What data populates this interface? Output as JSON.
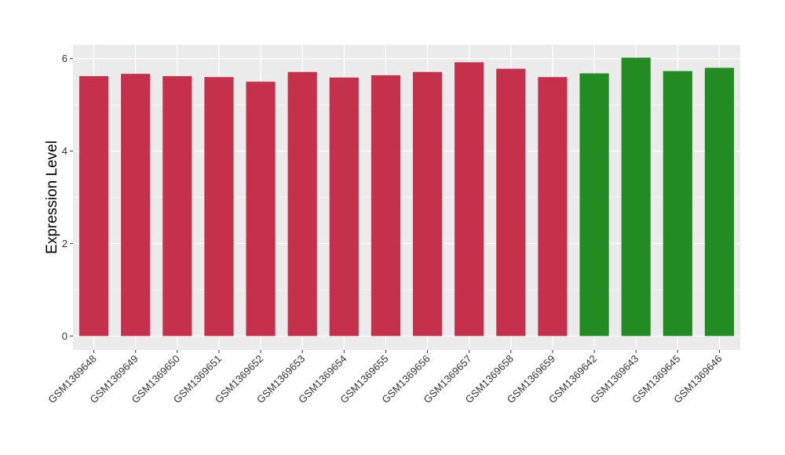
{
  "chart_data": {
    "type": "bar",
    "title": "",
    "xlabel": "",
    "ylabel": "Expression Level",
    "ylim": [
      -0.3,
      6.3
    ],
    "yticks": [
      0,
      2,
      4,
      6
    ],
    "grid": true,
    "legend": "none",
    "categories": [
      "GSM1369648",
      "GSM1369649",
      "GSM1369650",
      "GSM1369651",
      "GSM1369652",
      "GSM1369653",
      "GSM1369654",
      "GSM1369655",
      "GSM1369656",
      "GSM1369657",
      "GSM1369658",
      "GSM1369659",
      "GSM1369642",
      "GSM1369643",
      "GSM1369645",
      "GSM1369646"
    ],
    "values": [
      5.62,
      5.67,
      5.62,
      5.6,
      5.5,
      5.71,
      5.59,
      5.64,
      5.71,
      5.92,
      5.78,
      5.6,
      5.68,
      6.02,
      5.73,
      5.8
    ],
    "bar_colors": [
      "#c5304a",
      "#c5304a",
      "#c5304a",
      "#c5304a",
      "#c5304a",
      "#c5304a",
      "#c5304a",
      "#c5304a",
      "#c5304a",
      "#c5304a",
      "#c5304a",
      "#c5304a",
      "#228b22",
      "#228b22",
      "#228b22",
      "#228b22"
    ],
    "panel_color": "#ebebeb",
    "grid_color": "#ffffff"
  }
}
